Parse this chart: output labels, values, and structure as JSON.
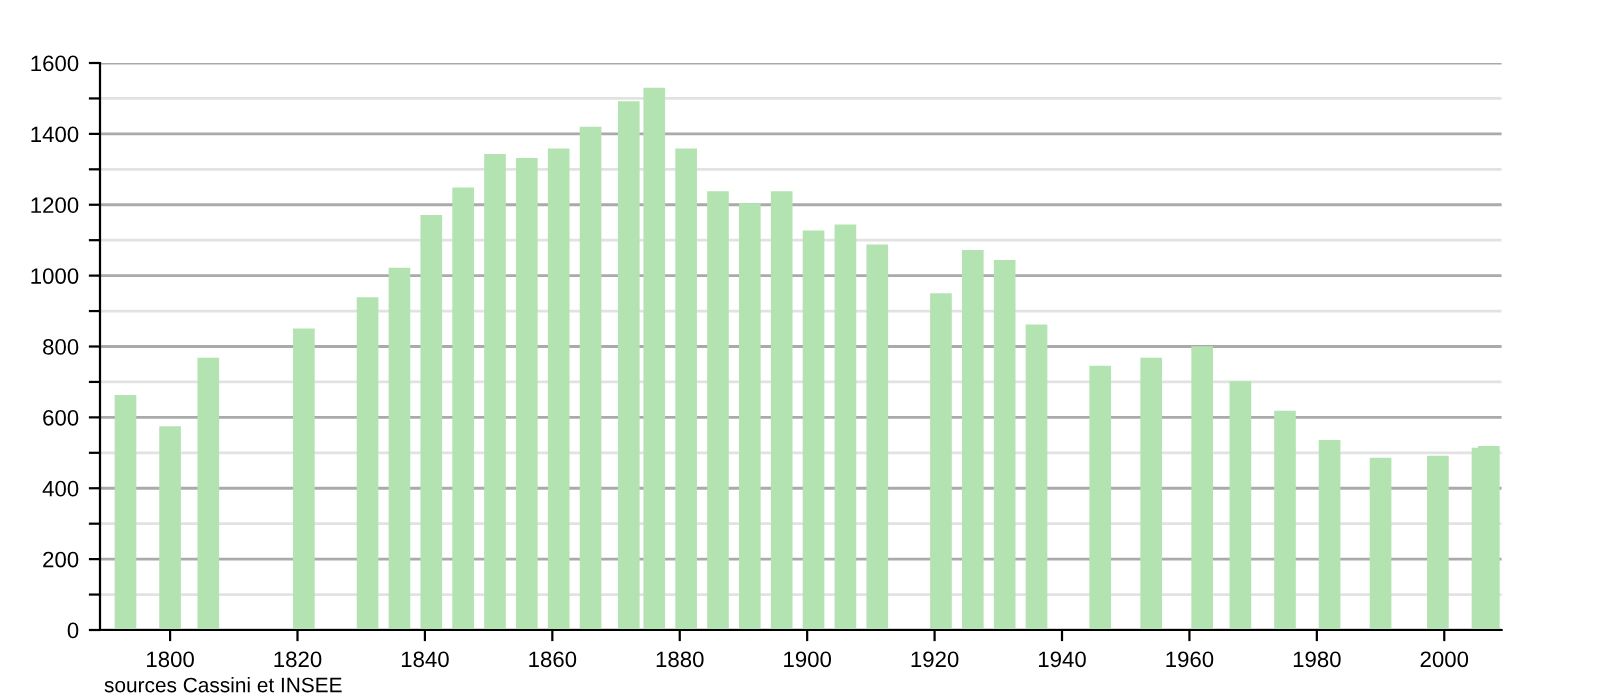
{
  "chart_data": {
    "type": "bar",
    "x": [
      1793,
      1800,
      1806,
      1821,
      1831,
      1836,
      1841,
      1846,
      1851,
      1856,
      1861,
      1866,
      1872,
      1876,
      1881,
      1886,
      1891,
      1896,
      1901,
      1906,
      1911,
      1921,
      1926,
      1931,
      1936,
      1946,
      1954,
      1962,
      1968,
      1975,
      1982,
      1990,
      1999,
      2006,
      2007
    ],
    "values": [
      663,
      575,
      768,
      851,
      939,
      1022,
      1171,
      1249,
      1343,
      1332,
      1359,
      1420,
      1492,
      1530,
      1359,
      1238,
      1204,
      1238,
      1127,
      1144,
      1088,
      950,
      1072,
      1044,
      862,
      746,
      768,
      801,
      702,
      619,
      536,
      486,
      492,
      514,
      519
    ],
    "color": "#b3e3b0",
    "xlim": [
      1789,
      2009
    ],
    "xticks": [
      1800,
      1820,
      1840,
      1860,
      1880,
      1900,
      1920,
      1940,
      1960,
      1980,
      2000
    ],
    "ylim": [
      0,
      1600
    ],
    "yticks": [
      0,
      {
        "value": 100,
        "label": null
      },
      200,
      {
        "value": 300,
        "label": null
      },
      400,
      {
        "value": 500,
        "label": null
      },
      600,
      {
        "value": 700,
        "label": null
      },
      800,
      {
        "value": 900,
        "label": null
      },
      1000,
      {
        "value": 1100,
        "label": null
      },
      1200,
      {
        "value": 1300,
        "label": null
      },
      1400,
      {
        "value": 1500,
        "label": null
      },
      1600
    ],
    "grid": "y",
    "annotations": [
      "sources Cassini et INSEE"
    ]
  }
}
